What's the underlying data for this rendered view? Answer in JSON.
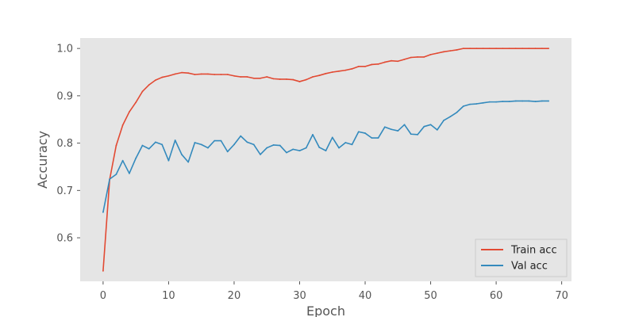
{
  "chart_data": {
    "type": "line",
    "title": "",
    "xlabel": "Epoch",
    "ylabel": "Accuracy",
    "xlim": [
      -3.5,
      71.5
    ],
    "ylim": [
      0.508,
      1.022
    ],
    "xticks": [
      0,
      10,
      20,
      30,
      40,
      50,
      60,
      70
    ],
    "yticks": [
      0.6,
      0.7,
      0.8,
      0.9,
      1.0
    ],
    "ytick_labels": [
      "0.6",
      "0.7",
      "0.8",
      "0.9",
      "1.0"
    ],
    "grid": false,
    "background": "#e5e5e5",
    "legend_position": "lower-right",
    "series": [
      {
        "name": "Train acc",
        "color": "#e24a33",
        "values": [
          0.53,
          0.723,
          0.795,
          0.838,
          0.866,
          0.886,
          0.909,
          0.923,
          0.933,
          0.939,
          0.942,
          0.946,
          0.949,
          0.948,
          0.945,
          0.946,
          0.946,
          0.945,
          0.945,
          0.945,
          0.942,
          0.94,
          0.94,
          0.937,
          0.937,
          0.94,
          0.936,
          0.935,
          0.935,
          0.934,
          0.93,
          0.934,
          0.94,
          0.943,
          0.947,
          0.95,
          0.952,
          0.954,
          0.957,
          0.962,
          0.962,
          0.966,
          0.967,
          0.971,
          0.974,
          0.973,
          0.977,
          0.981,
          0.982,
          0.982,
          0.987,
          0.99,
          0.993,
          0.995,
          0.997,
          1.0,
          1.0,
          1.0,
          1.0,
          1.0,
          1.0,
          1.0,
          1.0,
          1.0,
          1.0,
          1.0,
          1.0,
          1.0,
          1.0
        ]
      },
      {
        "name": "Val acc",
        "color": "#348abd",
        "values": [
          0.654,
          0.724,
          0.734,
          0.763,
          0.736,
          0.768,
          0.795,
          0.788,
          0.802,
          0.797,
          0.763,
          0.806,
          0.776,
          0.76,
          0.801,
          0.797,
          0.79,
          0.805,
          0.805,
          0.782,
          0.797,
          0.815,
          0.802,
          0.797,
          0.776,
          0.79,
          0.796,
          0.795,
          0.78,
          0.787,
          0.784,
          0.79,
          0.818,
          0.791,
          0.784,
          0.812,
          0.79,
          0.801,
          0.797,
          0.824,
          0.821,
          0.811,
          0.811,
          0.834,
          0.829,
          0.826,
          0.839,
          0.819,
          0.818,
          0.835,
          0.839,
          0.828,
          0.848,
          0.856,
          0.865,
          0.878,
          0.882,
          0.883,
          0.885,
          0.887,
          0.887,
          0.888,
          0.888,
          0.889,
          0.889,
          0.889,
          0.888,
          0.889,
          0.889
        ]
      }
    ]
  }
}
